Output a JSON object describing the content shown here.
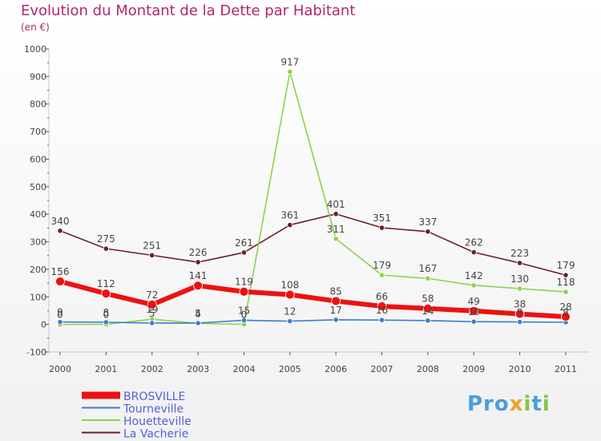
{
  "chart_data": {
    "type": "line",
    "title": "Evolution du Montant de la Dette par Habitant",
    "subtitle": "(en €)",
    "categories": [
      "2000",
      "2001",
      "2002",
      "2003",
      "2004",
      "2005",
      "2006",
      "2007",
      "2008",
      "2009",
      "2010",
      "2011"
    ],
    "ylim": [
      -100,
      1000
    ],
    "yticks": [
      -100,
      0,
      100,
      200,
      300,
      400,
      500,
      600,
      700,
      800,
      900,
      1000
    ],
    "grid": false,
    "legend_position": "bottom-left",
    "series": [
      {
        "name": "La Vacherie",
        "color": "#6b1f24",
        "values": [
          340,
          275,
          251,
          226,
          261,
          361,
          401,
          351,
          337,
          262,
          223,
          179
        ],
        "labels": [
          "340",
          "275",
          "251",
          "226",
          "261",
          "361",
          "401",
          "351",
          "337",
          "262",
          "223",
          "179"
        ]
      },
      {
        "name": "Houetteville",
        "color": "#8fd14f",
        "values": [
          0,
          0,
          19,
          4,
          0,
          917,
          311,
          179,
          167,
          142,
          130,
          118
        ],
        "labels": [
          "0",
          "0",
          "19",
          "4",
          "0",
          "917",
          "311",
          "179",
          "167",
          "142",
          "130",
          "118"
        ]
      },
      {
        "name": "Tourneville",
        "color": "#3a7fc8",
        "values": [
          9,
          8,
          5,
          5,
          15,
          12,
          17,
          16,
          14,
          10,
          9,
          8
        ],
        "labels": [
          "9",
          "8",
          "5",
          "5",
          "15",
          "12",
          "17",
          "16",
          "14",
          "10",
          "9",
          "8"
        ]
      },
      {
        "name": "BROSVILLE",
        "color": "#ee1111",
        "values": [
          156,
          112,
          72,
          141,
          119,
          108,
          85,
          66,
          58,
          49,
          38,
          28
        ],
        "labels": [
          "156",
          "112",
          "72",
          "141",
          "119",
          "108",
          "85",
          "66",
          "58",
          "49",
          "38",
          "28"
        ]
      }
    ],
    "legend_order": [
      "BROSVILLE",
      "Tourneville",
      "Houetteville",
      "La Vacherie"
    ]
  },
  "branding": {
    "logo_p1": "Pro",
    "logo_x": "x",
    "logo_i": "i",
    "logo_t": "t",
    "logo_i2": "i"
  }
}
